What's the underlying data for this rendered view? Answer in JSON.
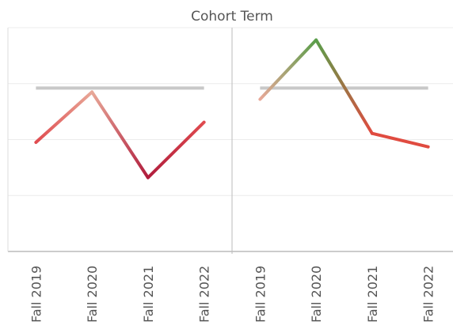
{
  "chart_data": {
    "type": "line",
    "title": "Cohort Term",
    "categories": [
      "Fall 2019",
      "Fall 2020",
      "Fall 2021",
      "Fall 2022"
    ],
    "ylim": [
      0,
      4
    ],
    "yticks": [
      0,
      1,
      2,
      3,
      4
    ],
    "grid": true,
    "panels": [
      {
        "values": [
          1.95,
          2.85,
          1.32,
          2.31
        ],
        "colors": [
          "#e04b4f",
          "#e8a898",
          "#b01c3c",
          "#e04b4f"
        ],
        "reference_line": 2.92,
        "reference_color": "#c8c8c8"
      },
      {
        "values": [
          2.72,
          3.78,
          2.11,
          1.87
        ],
        "colors": [
          "#e8a898",
          "#5a9e4a",
          "#e04b40",
          "#e04b40"
        ],
        "reference_line": 2.92,
        "reference_color": "#c8c8c8"
      }
    ]
  }
}
